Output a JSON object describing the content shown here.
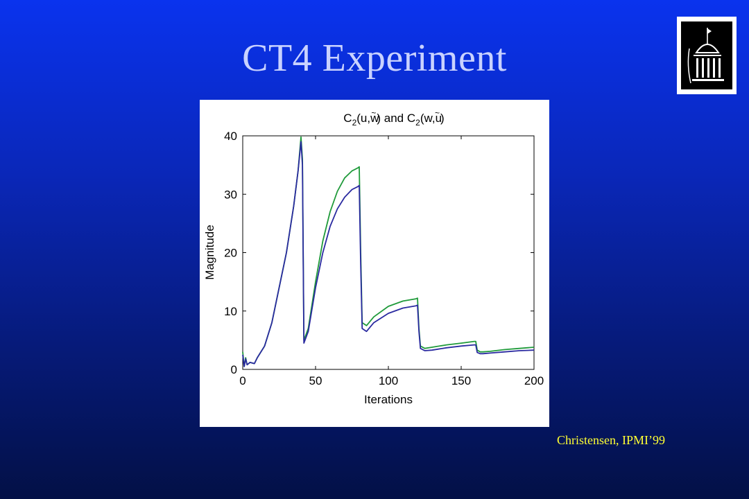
{
  "slide": {
    "title": "CT4 Experiment",
    "credit": "Christensen, IPMI’99",
    "logo_icon": "university-building-icon"
  },
  "colors": {
    "background_top": "#0a33ee",
    "background_bottom": "#031046",
    "title": "#c9d2ff",
    "credit": "#ffff33",
    "series_green": "#1f9a3a",
    "series_blue": "#2a2aa0"
  },
  "chart_data": {
    "type": "line",
    "title": "C2(u,w̃) and C2(w,ũ)",
    "xlabel": "Iterations",
    "ylabel": "Magnitude",
    "xlim": [
      0,
      200
    ],
    "ylim": [
      0,
      40
    ],
    "xticks": [
      0,
      50,
      100,
      150,
      200
    ],
    "yticks": [
      0,
      10,
      20,
      30,
      40
    ],
    "grid": false,
    "series": [
      {
        "color": "#1f9a3a",
        "x": [
          0,
          1,
          2,
          3,
          5,
          8,
          10,
          15,
          20,
          25,
          30,
          35,
          38,
          40,
          41,
          42,
          45,
          50,
          55,
          60,
          65,
          70,
          75,
          79,
          80,
          81,
          82,
          85,
          90,
          100,
          110,
          119,
          120,
          121,
          122,
          125,
          130,
          140,
          150,
          159,
          160,
          161,
          163,
          165,
          170,
          180,
          190,
          200
        ],
        "y": [
          3,
          0.5,
          2,
          0.8,
          1.2,
          1.0,
          2.0,
          4.0,
          8.0,
          14.0,
          20.0,
          28.0,
          34.0,
          39.8,
          36.0,
          5.0,
          7.0,
          15.0,
          22.0,
          27.0,
          30.5,
          32.8,
          34.0,
          34.5,
          34.7,
          20.0,
          8.0,
          7.5,
          9.0,
          10.8,
          11.7,
          12.1,
          12.2,
          7.0,
          4.0,
          3.6,
          3.8,
          4.2,
          4.5,
          4.8,
          4.8,
          3.3,
          3.0,
          3.0,
          3.1,
          3.4,
          3.6,
          3.8
        ]
      },
      {
        "color": "#2a2aa0",
        "x": [
          0,
          1,
          2,
          3,
          5,
          8,
          10,
          15,
          20,
          25,
          30,
          35,
          38,
          40,
          41,
          42,
          45,
          50,
          55,
          60,
          65,
          70,
          75,
          79,
          80,
          81,
          82,
          85,
          90,
          100,
          110,
          119,
          120,
          121,
          122,
          125,
          130,
          140,
          150,
          159,
          160,
          161,
          163,
          165,
          170,
          180,
          190,
          200
        ],
        "y": [
          2.5,
          0.5,
          1.8,
          0.8,
          1.2,
          1.0,
          2.0,
          4.0,
          8.0,
          14.0,
          20.0,
          28.0,
          34.0,
          39.0,
          35.0,
          4.5,
          6.5,
          14.0,
          20.0,
          24.5,
          27.5,
          29.5,
          30.8,
          31.3,
          31.5,
          18.0,
          7.0,
          6.5,
          8.0,
          9.6,
          10.5,
          10.9,
          11.0,
          6.5,
          3.6,
          3.2,
          3.3,
          3.7,
          4.0,
          4.2,
          4.2,
          2.9,
          2.7,
          2.7,
          2.8,
          3.0,
          3.2,
          3.3
        ]
      }
    ]
  }
}
